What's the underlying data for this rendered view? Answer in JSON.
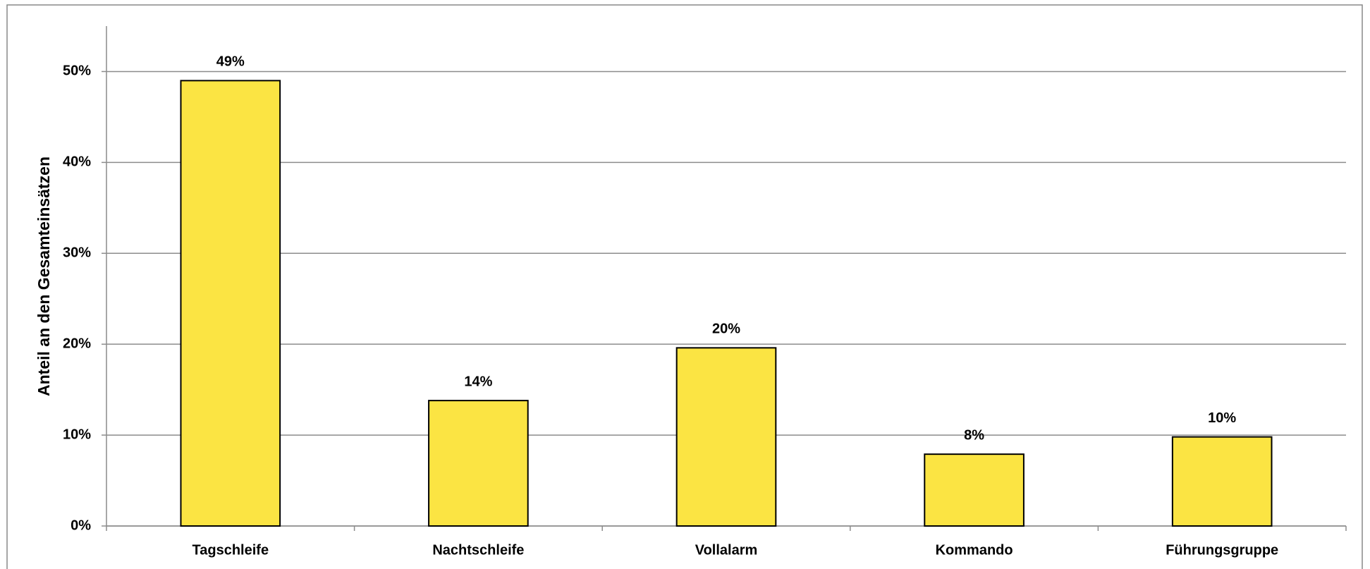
{
  "chart_data": {
    "type": "bar",
    "y_label": "Anteil an den Gesamteinsätzen",
    "categories": [
      "Tagschleife",
      "Nachtschleife",
      "Vollalarm",
      "Kommando",
      "Führungsgruppe"
    ],
    "values": [
      49,
      13.8,
      19.6,
      7.9,
      9.8
    ],
    "value_labels": [
      "49%",
      "14%",
      "20%",
      "8%",
      "10%"
    ],
    "color": "#fbe443",
    "ylim": [
      0,
      55
    ],
    "yticks": [
      {
        "value": 0,
        "label": "0%"
      },
      {
        "value": 10,
        "label": "10%"
      },
      {
        "value": 20,
        "label": "20%"
      },
      {
        "value": 30,
        "label": "30%"
      },
      {
        "value": 40,
        "label": "40%"
      },
      {
        "value": 50,
        "label": "50%"
      }
    ],
    "grid": true
  }
}
